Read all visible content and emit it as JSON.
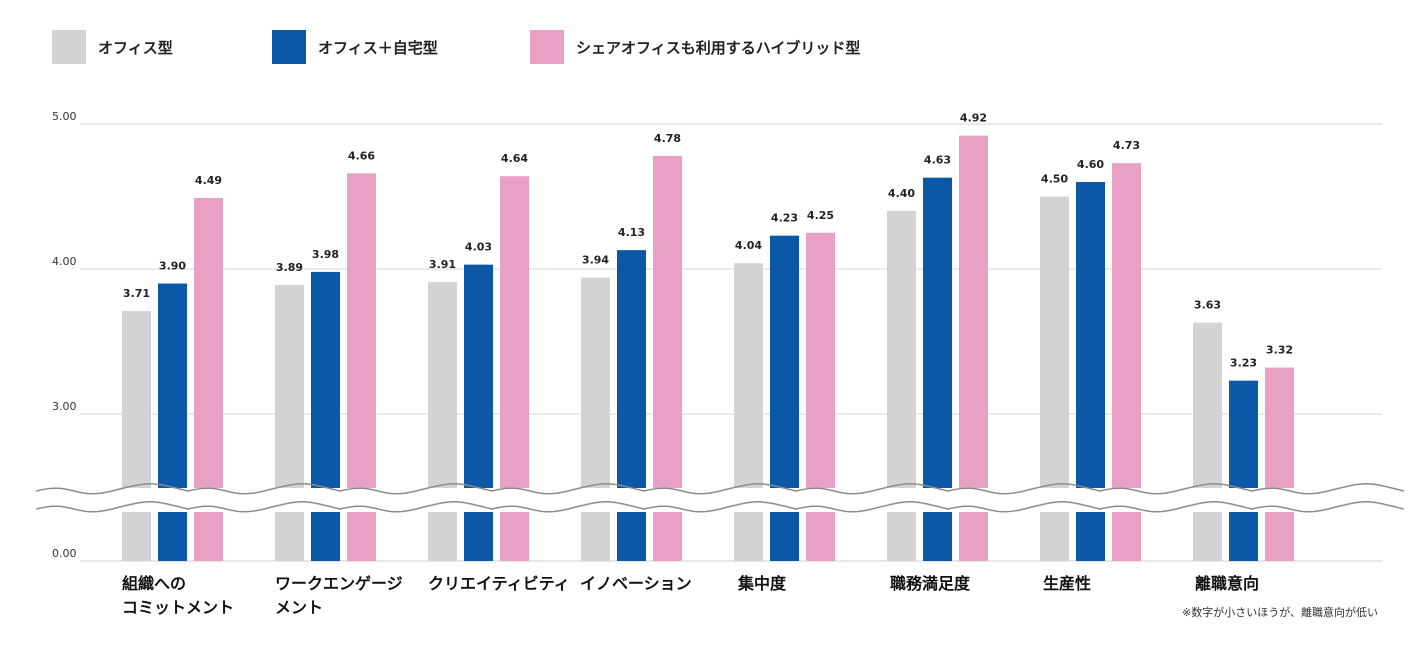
{
  "chart_data": {
    "type": "bar",
    "categories": [
      [
        "組織への",
        "コミットメント"
      ],
      [
        "ワークエンゲージ",
        "メント"
      ],
      [
        "クリエイティビティ"
      ],
      [
        "イノベーション"
      ],
      [
        "集中度"
      ],
      [
        "職務満足度"
      ],
      [
        "生産性"
      ],
      [
        "離職意向"
      ]
    ],
    "series": [
      {
        "name": "オフィス型",
        "color": "#d3d3d3",
        "values": [
          3.71,
          3.89,
          3.91,
          3.94,
          4.04,
          4.4,
          4.5,
          3.63
        ]
      },
      {
        "name": "オフィス＋自宅型",
        "color": "#0b57a8",
        "values": [
          3.9,
          3.98,
          4.03,
          4.13,
          4.23,
          4.63,
          4.6,
          3.23
        ]
      },
      {
        "name": "シェアオフィスも利用するハイブリッド型",
        "color": "#e8a1c4",
        "values": [
          4.49,
          4.66,
          4.64,
          4.78,
          4.25,
          4.92,
          4.73,
          3.32
        ]
      }
    ],
    "value_labels": [
      [
        "3.71",
        "3.89",
        "3.91",
        "3.94",
        "4.04",
        "4.40",
        "4.50",
        "3.63"
      ],
      [
        "3.90",
        "3.98",
        "4.03",
        "4.13",
        "4.23",
        "4.63",
        "4.60",
        "3.23"
      ],
      [
        "4.49",
        "4.66",
        "4.64",
        "4.78",
        "4.25",
        "4.92",
        "4.73",
        "3.32"
      ]
    ],
    "y_ticks": [
      "0.00",
      "3.00",
      "4.00",
      "5.00"
    ],
    "axis_break": "0.00–3.00",
    "grid": true,
    "legend_position": "top-left",
    "footnote": "※数字が小さいほうが、離職意向が低い"
  }
}
